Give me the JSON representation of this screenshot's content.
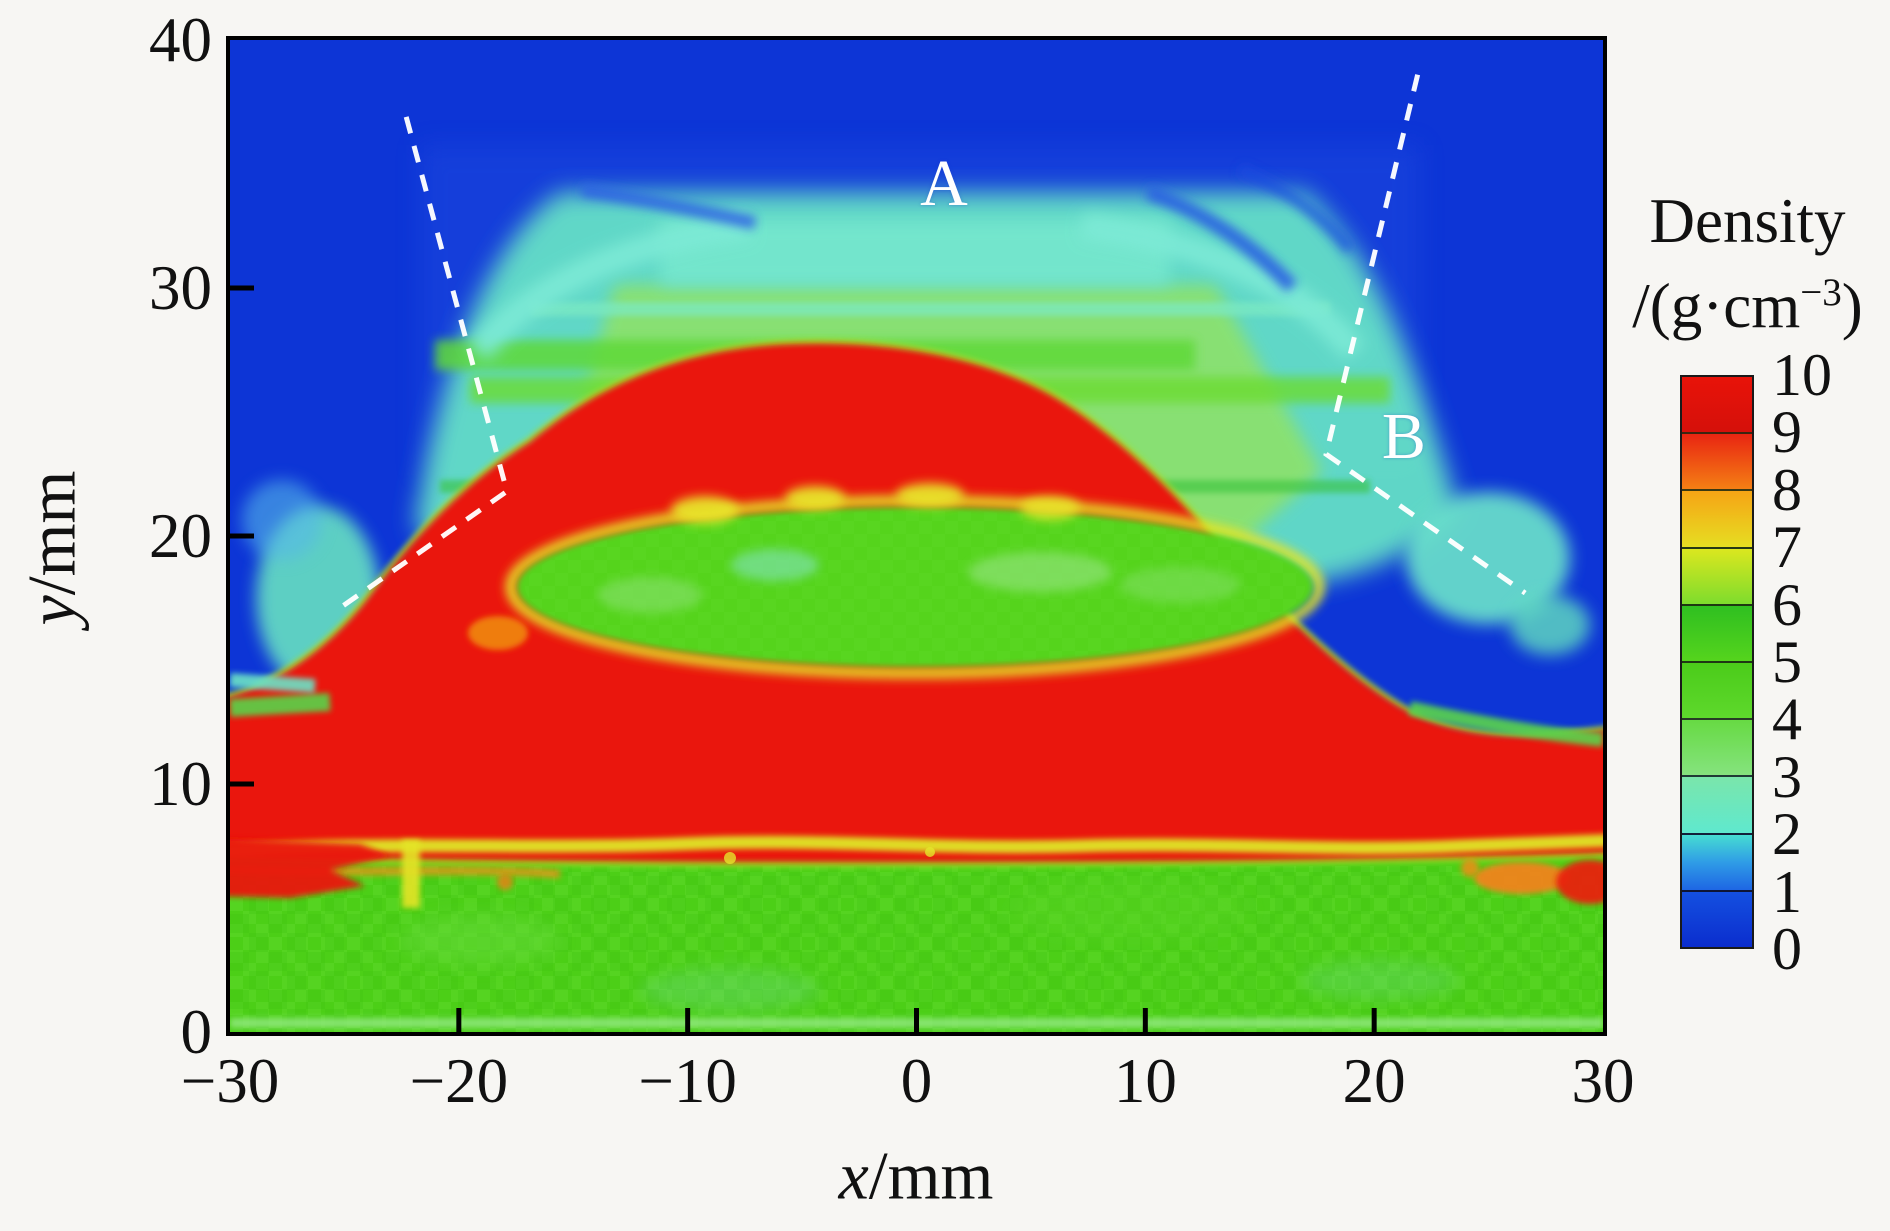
{
  "figure": {
    "x_axis": {
      "label_var": "x",
      "label_unit": "/mm",
      "ticks": [
        "−30",
        "−20",
        "−10",
        "0",
        "10",
        "20",
        "30"
      ]
    },
    "y_axis": {
      "label_var": "y",
      "label_unit": "/mm",
      "ticks": [
        "40",
        "30",
        "20",
        "10",
        "0"
      ]
    },
    "colorbar": {
      "title": "Density",
      "unit_prefix": "/(g·cm",
      "unit_sup": "−3",
      "unit_suffix": ")",
      "ticks": [
        "10",
        "9",
        "8",
        "7",
        "6",
        "5",
        "4",
        "3",
        "2",
        "1",
        "0"
      ]
    },
    "annotations": [
      {
        "label": "A"
      },
      {
        "label": "B"
      }
    ]
  },
  "chart_data": {
    "type": "heatmap",
    "xlabel": "x/mm",
    "ylabel": "y/mm",
    "x_range": [
      -30,
      30
    ],
    "y_range": [
      0,
      40
    ],
    "x_ticks": [
      -30,
      -20,
      -10,
      0,
      10,
      20,
      30
    ],
    "y_ticks": [
      40,
      30,
      20,
      10,
      0
    ],
    "grid": false,
    "colorbar": {
      "label": "Density /(g·cm⁻³)",
      "range": [
        0,
        10
      ],
      "ticks": [
        10,
        9,
        8,
        7,
        6,
        5,
        4,
        3,
        2,
        1,
        0
      ],
      "position": "right"
    },
    "colorbar_segments": [
      {
        "hi": 10,
        "lo": 9,
        "stops": [
          "#e81309",
          "#d5100a"
        ]
      },
      {
        "hi": 9,
        "lo": 8,
        "stops": [
          "#e92512",
          "#f47f14"
        ]
      },
      {
        "hi": 8,
        "lo": 7,
        "stops": [
          "#f6a415",
          "#e6de22"
        ]
      },
      {
        "hi": 7,
        "lo": 6,
        "stops": [
          "#dbe71f",
          "#7edc2d"
        ]
      },
      {
        "hi": 6,
        "lo": 5,
        "stops": [
          "#2fbf20",
          "#55d41d"
        ]
      },
      {
        "hi": 5,
        "lo": 4,
        "stops": [
          "#4bcc1a",
          "#5ed82c"
        ]
      },
      {
        "hi": 4,
        "lo": 3,
        "stops": [
          "#67da43",
          "#85e37e"
        ]
      },
      {
        "hi": 3,
        "lo": 2,
        "stops": [
          "#7ae6ab",
          "#5fe8ce"
        ]
      },
      {
        "hi": 2,
        "lo": 1,
        "stops": [
          "#46dcd2",
          "#2f9ce6",
          "#1e66e4"
        ]
      },
      {
        "hi": 1,
        "lo": 0,
        "stops": [
          "#1450e0",
          "#0b2dce"
        ]
      }
    ],
    "annotations": [
      {
        "label": "A",
        "x_mm": 1.2,
        "y_mm": 34.2,
        "color": "#ffffff"
      },
      {
        "label": "B",
        "x_mm": 21.3,
        "y_mm": 24.0,
        "color": "#ffffff"
      }
    ],
    "dashed_guides": [
      {
        "side": "left",
        "points_mm": [
          [
            -22.3,
            36.9
          ],
          [
            -17.9,
            21.8
          ],
          [
            -25.5,
            16.9
          ]
        ]
      },
      {
        "side": "right",
        "points_mm": [
          [
            21.9,
            38.6
          ],
          [
            17.9,
            23.3
          ],
          [
            26.6,
            17.7
          ]
        ]
      }
    ],
    "regions": [
      {
        "name": "ambient-background",
        "density_g_cm3": 0.5,
        "description": "uniform blue field filling upper corners and outside the plume"
      },
      {
        "name": "upper-plume",
        "density_g_cm3": 2.5,
        "description": "cyan/green turbulent plume between the dashed guides, y≈21–35 mm, x≈−20…20 mm with horizontal green streaks near y≈27–29 mm"
      },
      {
        "name": "plume-wings",
        "density_g_cm3": 2,
        "description": "cyan arcs near y≈33 mm curving from x≈±15 mm toward the centre band under label A"
      },
      {
        "name": "dense-dome",
        "density_g_cm3": 10,
        "description": "red dome, apex at (0, ≈26 mm), flanks reaching plot edges near y≈12 mm, merging into a full-width red slab down to y≈7.5 mm"
      },
      {
        "name": "dome-cavity",
        "density_g_cm3": 5,
        "description": "green ellipse inside the dome, centre (0, ≈17.8 mm), extent ≈±17.5 mm × ±3.3 mm, yellow rim, small orange spot at (−18, 16) mm"
      },
      {
        "name": "substrate",
        "density_g_cm3": 5.5,
        "description": "mottled green slab from y≈0 to 7.5 mm across the full width"
      },
      {
        "name": "dome-substrate-interface",
        "density_g_cm3": 7.5,
        "description": "wavy yellow/orange transition band at y≈7–8 mm, red tongues at the left and right plot edges"
      }
    ]
  }
}
